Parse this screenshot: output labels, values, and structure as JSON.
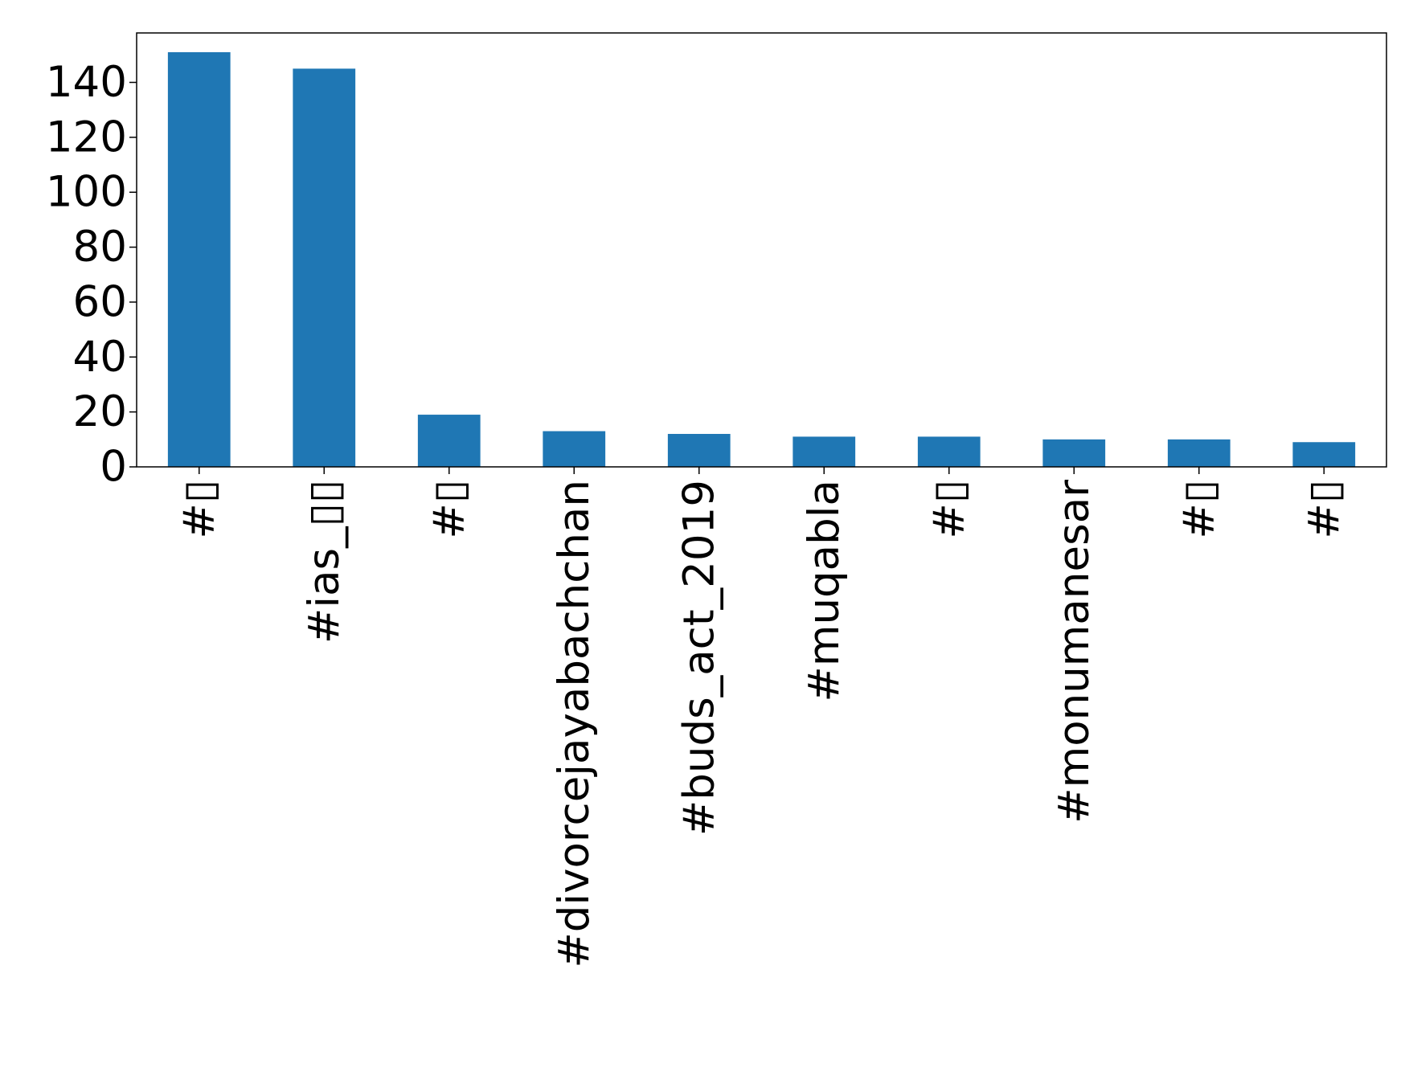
{
  "chart_data": {
    "type": "bar",
    "categories": [
      "#▯",
      "#ias_▯▯",
      "#▯",
      "#divorcejayabachchan",
      "#buds_act_2019",
      "#muqabla",
      "#▯",
      "#monumanesar",
      "#▯",
      "#▯"
    ],
    "values": [
      151,
      145,
      19,
      13,
      12,
      11,
      11,
      10,
      10,
      9
    ],
    "y_ticks": [
      "0",
      "20",
      "40",
      "60",
      "80",
      "100",
      "120",
      "140"
    ],
    "ylim": [
      0,
      158
    ],
    "title": "",
    "xlabel": "",
    "ylabel": "",
    "grid": false,
    "bar_color": "#1f77b4",
    "axis_color": "#000000",
    "tick_label_rotation": "vertical"
  }
}
